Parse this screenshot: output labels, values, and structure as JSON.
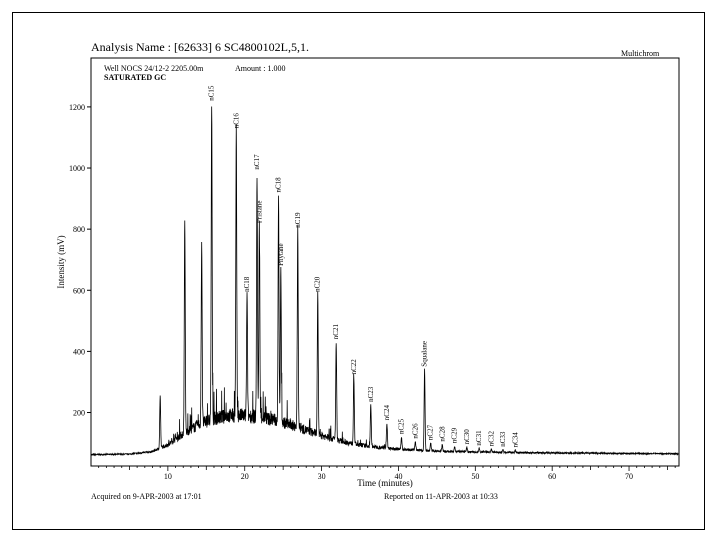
{
  "header": {
    "title": "Analysis Name : [62633] 6 SC4800102L,5,1.",
    "software": "Multichrom",
    "well": "Well NOCS 24/12-2 2205.00m",
    "amount": "Amount : 1.000",
    "sample": "SATURATED GC"
  },
  "footer": {
    "acquired": "Acquired on  9-APR-2003 at 17:01",
    "reported": "Reported on 11-APR-2003 at 10:33"
  },
  "chart_data": {
    "type": "line",
    "xlabel": "Time (minutes)",
    "ylabel": "Intensity (mV)",
    "xlim": [
      0,
      76.5
    ],
    "ylim": [
      25,
      1360
    ],
    "xticks": [
      10,
      20,
      30,
      40,
      50,
      60,
      70
    ],
    "yticks": [
      200,
      400,
      600,
      800,
      1000,
      1200
    ],
    "grid": false,
    "line_color": "#000000",
    "baseline": [
      [
        0,
        62
      ],
      [
        5,
        64
      ],
      [
        8,
        72
      ],
      [
        10,
        95
      ],
      [
        12,
        130
      ],
      [
        14,
        160
      ],
      [
        16,
        180
      ],
      [
        18,
        190
      ],
      [
        20,
        190
      ],
      [
        22,
        185
      ],
      [
        24,
        175
      ],
      [
        26,
        160
      ],
      [
        28,
        142
      ],
      [
        30,
        125
      ],
      [
        32,
        110
      ],
      [
        34,
        98
      ],
      [
        36,
        90
      ],
      [
        38,
        85
      ],
      [
        40,
        80
      ],
      [
        43,
        76
      ],
      [
        46,
        73
      ],
      [
        50,
        71
      ],
      [
        55,
        69
      ],
      [
        60,
        68
      ],
      [
        65,
        67
      ],
      [
        70,
        66
      ],
      [
        76.5,
        65
      ]
    ],
    "peaks": [
      {
        "x": 9.0,
        "y": 255
      },
      {
        "x": 12.2,
        "y": 835
      },
      {
        "x": 14.4,
        "y": 760
      },
      {
        "x": 15.7,
        "y": 1210,
        "label": "nC15"
      },
      {
        "x": 18.9,
        "y": 1120,
        "label": "nC16"
      },
      {
        "x": 20.3,
        "y": 585,
        "label": "nC18"
      },
      {
        "x": 21.6,
        "y": 985,
        "label": "nC17"
      },
      {
        "x": 21.9,
        "y": 810,
        "label": "Pristane"
      },
      {
        "x": 24.4,
        "y": 910,
        "label": "nC18"
      },
      {
        "x": 24.7,
        "y": 670,
        "label": "Phytane"
      },
      {
        "x": 26.9,
        "y": 795,
        "label": "nC19"
      },
      {
        "x": 29.5,
        "y": 585,
        "label": "nC20"
      },
      {
        "x": 31.9,
        "y": 430,
        "label": "nC21"
      },
      {
        "x": 34.2,
        "y": 315,
        "label": "nC22"
      },
      {
        "x": 36.4,
        "y": 225,
        "label": "nC23"
      },
      {
        "x": 38.5,
        "y": 165,
        "label": "nC24"
      },
      {
        "x": 40.4,
        "y": 120,
        "label": "nC25"
      },
      {
        "x": 42.2,
        "y": 105,
        "label": "nC26"
      },
      {
        "x": 43.4,
        "y": 340,
        "label": "Squalane"
      },
      {
        "x": 44.2,
        "y": 100,
        "label": "nC27"
      },
      {
        "x": 45.7,
        "y": 95,
        "label": "nC28"
      },
      {
        "x": 47.3,
        "y": 90,
        "label": "nC29"
      },
      {
        "x": 48.9,
        "y": 86,
        "label": "nC30"
      },
      {
        "x": 50.5,
        "y": 82,
        "label": "nC31"
      },
      {
        "x": 52.1,
        "y": 80,
        "label": "nC32"
      },
      {
        "x": 53.6,
        "y": 78,
        "label": "nC33"
      },
      {
        "x": 55.2,
        "y": 76,
        "label": "nC34"
      }
    ]
  }
}
